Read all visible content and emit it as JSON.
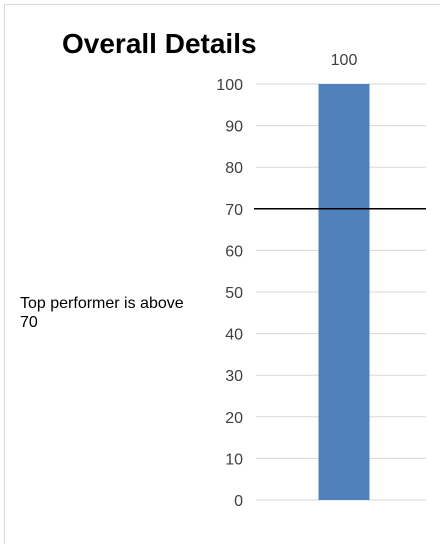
{
  "chart_data": {
    "type": "bar",
    "title": "Overall Details",
    "categories": [
      ""
    ],
    "values": [
      100
    ],
    "data_labels": [
      "100"
    ],
    "ylim": [
      0,
      100
    ],
    "yticks": [
      0,
      10,
      20,
      30,
      40,
      50,
      60,
      70,
      80,
      90,
      100
    ],
    "grid": true,
    "legend": "none",
    "reference_line": {
      "value": 70
    },
    "annotation": "Top performer is above 70",
    "colors": {
      "bar": "#4f81bd",
      "grid": "#d9d9d9",
      "reference_line": "#000000"
    }
  }
}
